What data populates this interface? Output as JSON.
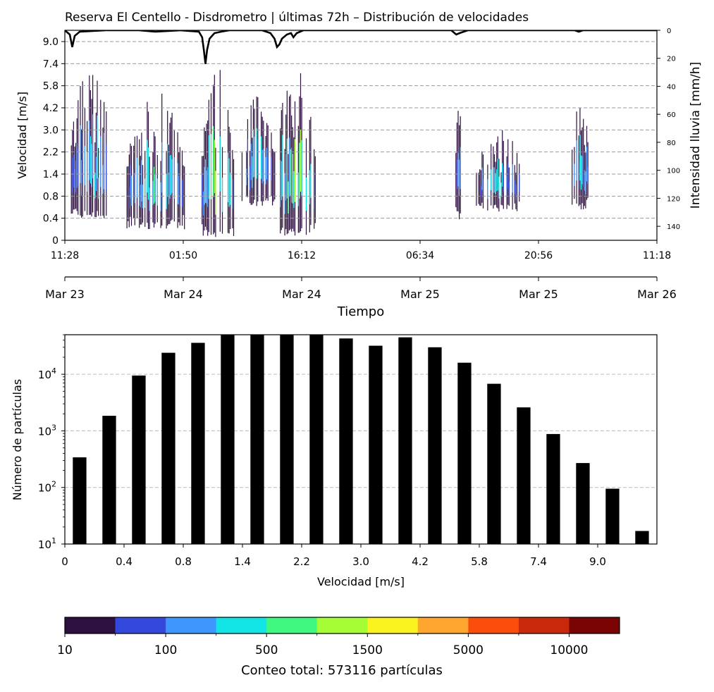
{
  "chart_data": [
    {
      "type": "heatmap",
      "title": "Reserva El Centello - Disdrometro | últimas 72h – Distribución de velocidades",
      "xlabel": "Tiempo",
      "ylabel": "Velocidad [m/s]",
      "y2label": "Intensidad lluvia [mm/h]",
      "time_ticks": [
        "11:28",
        "01:50",
        "16:12",
        "06:34",
        "20:56",
        "11:18"
      ],
      "date_ticks": [
        "Mar 23",
        "Mar 24",
        "Mar 24",
        "Mar 25",
        "Mar 25",
        "Mar 26"
      ],
      "y_ticks": [
        "0",
        "0.4",
        "0.8",
        "1.4",
        "2.2",
        "3.0",
        "4.2",
        "5.8",
        "7.4",
        "9.0"
      ],
      "y2_ticks": [
        "0",
        "20",
        "40",
        "60",
        "80",
        "100",
        "120",
        "140"
      ],
      "y2lim": [
        0,
        150
      ],
      "time_range_h": [
        0,
        72
      ],
      "rain_events": [
        {
          "start_h": 0.6,
          "end_h": 5.5,
          "vmin_idx": 1.0,
          "vmax_idx": 8.0,
          "peak": 0.28
        },
        {
          "start_h": 7.5,
          "end_h": 14.5,
          "vmin_idx": 0.5,
          "vmax_idx": 6.8,
          "peak": 0.35
        },
        {
          "start_h": 16.5,
          "end_h": 20.5,
          "vmin_idx": 0.1,
          "vmax_idx": 8.0,
          "peak": 0.6
        },
        {
          "start_h": 21.5,
          "end_h": 25.5,
          "vmin_idx": 1.5,
          "vmax_idx": 7.0,
          "peak": 0.3
        },
        {
          "start_h": 25.6,
          "end_h": 30.5,
          "vmin_idx": 0.2,
          "vmax_idx": 8.2,
          "peak": 0.55
        },
        {
          "start_h": 47.5,
          "end_h": 48.5,
          "vmin_idx": 0.9,
          "vmax_idx": 7.7,
          "peak": 0.25
        },
        {
          "start_h": 50.0,
          "end_h": 55.5,
          "vmin_idx": 1.3,
          "vmax_idx": 5.2,
          "peak": 0.28
        },
        {
          "start_h": 61.5,
          "end_h": 63.8,
          "vmin_idx": 1.4,
          "vmax_idx": 7.0,
          "peak": 0.26
        }
      ],
      "rain_intensity": [
        {
          "t": 0,
          "v": 0
        },
        {
          "t": 0.6,
          "v": 3
        },
        {
          "t": 0.9,
          "v": 12
        },
        {
          "t": 1.2,
          "v": 4
        },
        {
          "t": 1.8,
          "v": 1
        },
        {
          "t": 5,
          "v": 0
        },
        {
          "t": 9,
          "v": 0
        },
        {
          "t": 11,
          "v": 1
        },
        {
          "t": 14,
          "v": 0
        },
        {
          "t": 16.3,
          "v": 1
        },
        {
          "t": 16.7,
          "v": 5
        },
        {
          "t": 16.9,
          "v": 14
        },
        {
          "t": 17.1,
          "v": 24
        },
        {
          "t": 17.3,
          "v": 14
        },
        {
          "t": 17.6,
          "v": 6
        },
        {
          "t": 18.2,
          "v": 2
        },
        {
          "t": 19,
          "v": 1
        },
        {
          "t": 20,
          "v": 0
        },
        {
          "t": 24,
          "v": 0
        },
        {
          "t": 25,
          "v": 2
        },
        {
          "t": 25.5,
          "v": 6
        },
        {
          "t": 25.8,
          "v": 12
        },
        {
          "t": 26.1,
          "v": 10
        },
        {
          "t": 26.4,
          "v": 6
        },
        {
          "t": 27,
          "v": 3
        },
        {
          "t": 27.5,
          "v": 2
        },
        {
          "t": 27.8,
          "v": 5
        },
        {
          "t": 28.2,
          "v": 2
        },
        {
          "t": 29,
          "v": 0
        },
        {
          "t": 47,
          "v": 0
        },
        {
          "t": 47.6,
          "v": 3
        },
        {
          "t": 48,
          "v": 2
        },
        {
          "t": 49,
          "v": 0
        },
        {
          "t": 62,
          "v": 0
        },
        {
          "t": 62.5,
          "v": 1
        },
        {
          "t": 63,
          "v": 0
        },
        {
          "t": 72,
          "v": 0
        }
      ]
    },
    {
      "type": "bar",
      "xlabel": "Velocidad [m/s]",
      "ylabel": "Número de partículas",
      "yscale": "log",
      "ylim": [
        10,
        50000
      ],
      "y_ticks": [
        {
          "value": 10,
          "label": "10",
          "exp": "1"
        },
        {
          "value": 100,
          "label": "10",
          "exp": "2"
        },
        {
          "value": 1000,
          "label": "10",
          "exp": "3"
        },
        {
          "value": 10000,
          "label": "10",
          "exp": "4"
        }
      ],
      "x_ticks": [
        "0",
        "0.4",
        "0.8",
        "1.4",
        "2.2",
        "3.0",
        "4.2",
        "5.8",
        "7.4",
        "9.0"
      ],
      "values": [
        340,
        1850,
        9500,
        24000,
        36000,
        50000,
        50000,
        50000,
        50000,
        43000,
        32000,
        45000,
        30000,
        16000,
        6800,
        2600,
        880,
        270,
        95,
        17
      ],
      "bar_color": "#000000"
    },
    {
      "type": "colorbar",
      "colors": [
        "#2d0f40",
        "#3349dc",
        "#3f96fd",
        "#12e3e4",
        "#40f880",
        "#a5fd35",
        "#f9f21e",
        "#ffa630",
        "#fb4e0b",
        "#c8290a",
        "#7a0404"
      ],
      "tick_labels": [
        "10",
        "100",
        "500",
        "1500",
        "5000",
        "10000"
      ],
      "label": "Conteo total: 573116 partículas"
    }
  ]
}
